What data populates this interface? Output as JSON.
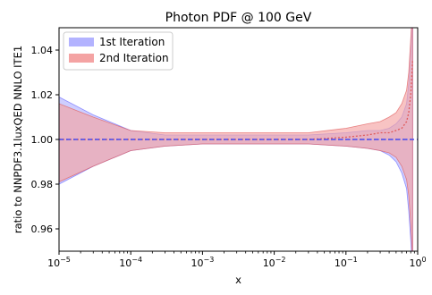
{
  "chart_data": {
    "type": "area",
    "title": "Photon PDF @ 100 GeV",
    "xlabel": "x",
    "ylabel": "ratio to NNPDF3.1luxQED NNLO ITE1",
    "xscale": "log",
    "xlim": [
      1e-05,
      1.0
    ],
    "ylim": [
      0.95,
      1.05
    ],
    "grid": false,
    "legend_position": "top-left",
    "yticks": [
      {
        "value": 0.96,
        "label": "0.96"
      },
      {
        "value": 0.98,
        "label": "0.98"
      },
      {
        "value": 1.0,
        "label": "1.00"
      },
      {
        "value": 1.02,
        "label": "1.02"
      },
      {
        "value": 1.04,
        "label": "1.04"
      }
    ],
    "xticks": [
      {
        "value": 1e-05,
        "base": "10",
        "exp": "−5"
      },
      {
        "value": 0.0001,
        "base": "10",
        "exp": "−4"
      },
      {
        "value": 0.001,
        "base": "10",
        "exp": "−3"
      },
      {
        "value": 0.01,
        "base": "10",
        "exp": "−2"
      },
      {
        "value": 0.1,
        "base": "10",
        "exp": "−1"
      },
      {
        "value": 1.0,
        "base": "10",
        "exp": "0"
      }
    ],
    "reference_line": {
      "y": 1.0,
      "color": "#4b4bea",
      "style": "dashed"
    },
    "x": [
      1e-05,
      3e-05,
      0.0001,
      0.0003,
      0.001,
      0.003,
      0.01,
      0.03,
      0.1,
      0.2,
      0.3,
      0.4,
      0.5,
      0.6,
      0.7,
      0.75,
      0.8,
      0.85
    ],
    "series": [
      {
        "name": "1st Iteration",
        "color": "#b3b3ff",
        "line_color": "#6b6bff",
        "central": [
          1.0,
          1.0,
          1.0,
          1.0,
          1.0,
          1.0,
          1.0,
          1.0,
          1.0,
          1.0,
          1.0,
          1.0,
          1.0,
          1.0,
          1.0,
          1.0,
          1.0,
          1.0
        ],
        "upper": [
          1.019,
          1.011,
          1.004,
          1.002,
          1.002,
          1.002,
          1.002,
          1.002,
          1.003,
          1.004,
          1.004,
          1.005,
          1.007,
          1.01,
          1.016,
          1.025,
          1.04,
          1.06
        ],
        "lower": [
          0.98,
          0.988,
          0.995,
          0.997,
          0.998,
          0.998,
          0.998,
          0.998,
          0.997,
          0.996,
          0.995,
          0.993,
          0.99,
          0.985,
          0.978,
          0.968,
          0.955,
          0.94
        ]
      },
      {
        "name": "2nd Iteration",
        "color": "#f4a3a3",
        "line_color": "#e05a5a",
        "central": [
          1.0,
          1.0,
          1.0,
          1.0,
          1.0,
          1.0,
          1.0,
          1.0,
          1.001,
          1.002,
          1.003,
          1.003,
          1.004,
          1.005,
          1.008,
          1.012,
          1.02,
          1.035
        ],
        "upper": [
          1.016,
          1.01,
          1.004,
          1.003,
          1.003,
          1.003,
          1.003,
          1.003,
          1.005,
          1.007,
          1.008,
          1.01,
          1.012,
          1.016,
          1.022,
          1.03,
          1.045,
          1.06
        ],
        "lower": [
          0.981,
          0.988,
          0.995,
          0.997,
          0.998,
          0.998,
          0.998,
          0.998,
          0.997,
          0.996,
          0.995,
          0.994,
          0.992,
          0.988,
          0.982,
          0.975,
          0.962,
          0.945
        ]
      }
    ]
  }
}
